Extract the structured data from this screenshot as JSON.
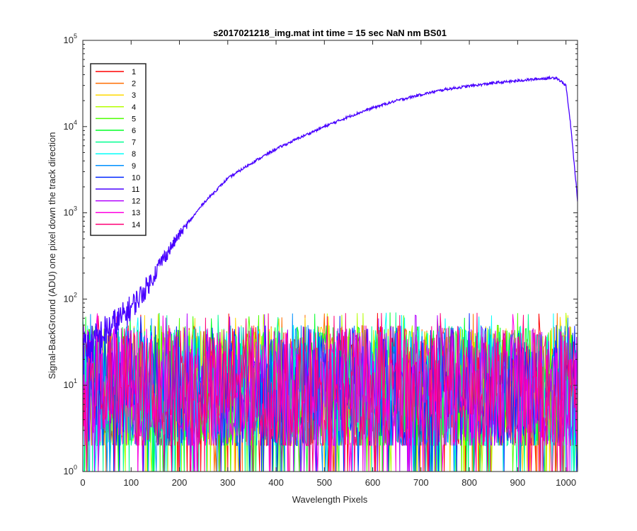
{
  "chart_data": {
    "type": "line",
    "title": "s2017021218_img.mat int time = 15 sec  NaN nm BS01",
    "xlabel": "Wavelength Pixels",
    "ylabel": "Signal-BackGround (ADU) one pixel down the track direction",
    "xlim": [
      0,
      1024
    ],
    "ylim": [
      1,
      100000
    ],
    "yscale": "log",
    "grid": false,
    "legend_position": "top-left",
    "x_ticks": [
      "0",
      "100",
      "200",
      "300",
      "400",
      "500",
      "600",
      "700",
      "800",
      "900",
      "1000"
    ],
    "y_ticks": [
      {
        "base": "10",
        "exp": "0"
      },
      {
        "base": "10",
        "exp": "1"
      },
      {
        "base": "10",
        "exp": "2"
      },
      {
        "base": "10",
        "exp": "3"
      },
      {
        "base": "10",
        "exp": "4"
      },
      {
        "base": "10",
        "exp": "5"
      }
    ],
    "highlight_series": {
      "name": "11",
      "x": [
        0,
        20,
        40,
        60,
        80,
        100,
        120,
        140,
        160,
        180,
        200,
        250,
        300,
        350,
        400,
        450,
        500,
        550,
        600,
        650,
        700,
        750,
        800,
        850,
        900,
        950,
        980,
        1000,
        1010,
        1024
      ],
      "y": [
        25,
        30,
        38,
        48,
        60,
        80,
        110,
        160,
        260,
        380,
        560,
        1300,
        2500,
        3800,
        5500,
        7500,
        10000,
        13000,
        16500,
        20000,
        23500,
        27000,
        29500,
        32000,
        34000,
        36000,
        37000,
        30000,
        10000,
        1400
      ]
    },
    "noise_series_summary": {
      "series": [
        "1",
        "2",
        "3",
        "4",
        "5",
        "6",
        "7",
        "8",
        "9",
        "10",
        "12",
        "13",
        "14"
      ],
      "typical_range": [
        2,
        50
      ],
      "max_approx": 70
    },
    "series": [
      {
        "name": "1",
        "color": "#ff0000"
      },
      {
        "name": "2",
        "color": "#ff6e00"
      },
      {
        "name": "3",
        "color": "#ffd800"
      },
      {
        "name": "4",
        "color": "#b6ff00"
      },
      {
        "name": "5",
        "color": "#4dff00"
      },
      {
        "name": "6",
        "color": "#00ff26"
      },
      {
        "name": "7",
        "color": "#00ff91"
      },
      {
        "name": "8",
        "color": "#00fff9"
      },
      {
        "name": "9",
        "color": "#0090ff"
      },
      {
        "name": "10",
        "color": "#0026ff"
      },
      {
        "name": "11",
        "color": "#4800ff"
      },
      {
        "name": "12",
        "color": "#b300ff"
      },
      {
        "name": "13",
        "color": "#ff00e1"
      },
      {
        "name": "14",
        "color": "#ff0077"
      }
    ]
  }
}
